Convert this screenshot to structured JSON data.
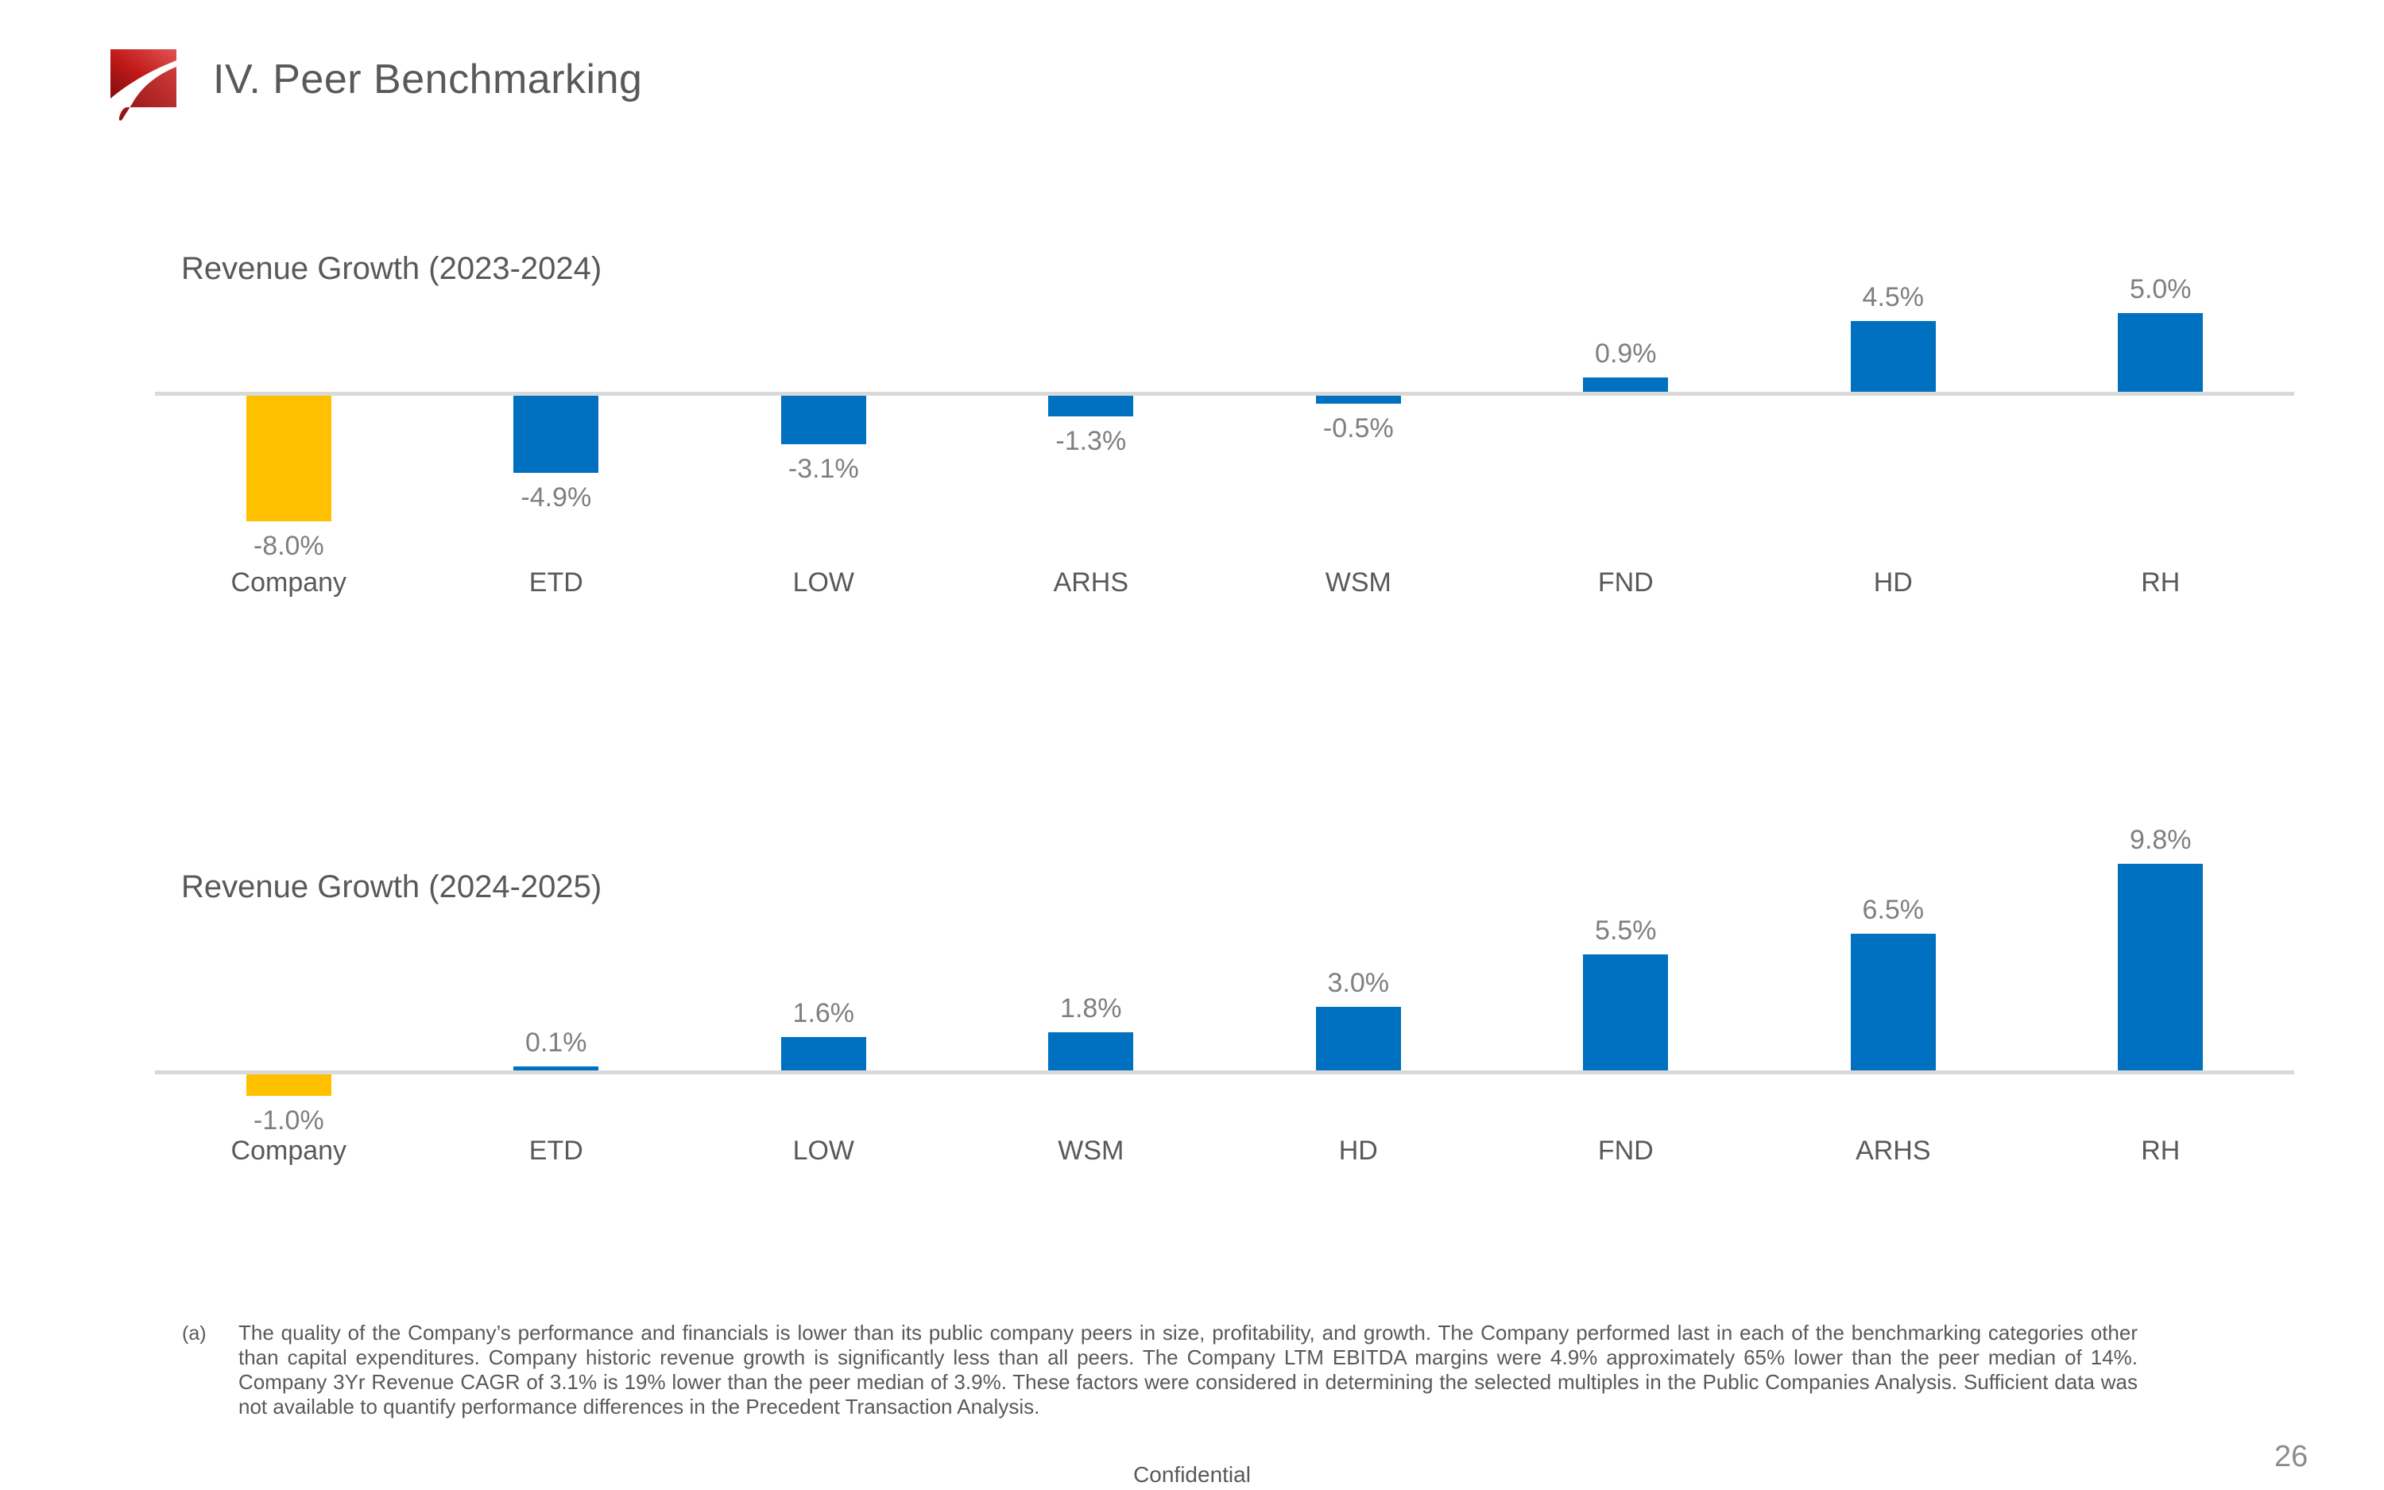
{
  "slide": {
    "title": "IV. Peer Benchmarking",
    "footnote": {
      "marker": "(a)",
      "text": "The quality of the Company’s performance and financials is lower than its public company peers in size, profitability, and growth. The Company performed last in each of the benchmarking categories other than capital expenditures. Company historic revenue growth is significantly less than all peers. The Company LTM EBITDA margins were 4.9% approximately 65% lower than the peer median of 14%. Company 3Yr Revenue CAGR of 3.1% is 19% lower than the peer median of 3.9%. These factors were considered in determining the selected multiples in the Public Companies Analysis. Sufficient data was not available to quantify performance differences in the Precedent Transaction Analysis."
    },
    "footer": {
      "confidential": "Confidential",
      "page_number": "26"
    },
    "colors": {
      "bar_blue": "#0070C0",
      "bar_highlight": "#FFC000",
      "axis_line": "#D9D9D9",
      "title_gray": "#595959",
      "value_label_gray": "#7F7F7F",
      "logo_red": "#C00000"
    }
  },
  "chart_data": [
    {
      "type": "bar",
      "title": "Revenue Growth (2023-2024)",
      "categories": [
        "Company",
        "ETD",
        "LOW",
        "ARHS",
        "WSM",
        "FND",
        "HD",
        "RH"
      ],
      "values": [
        -8.0,
        -4.9,
        -3.1,
        -1.3,
        -0.5,
        0.9,
        4.5,
        5.0
      ],
      "labels": [
        "-8.0%",
        "-4.9%",
        "-3.1%",
        "-1.3%",
        "-0.5%",
        "0.9%",
        "4.5%",
        "5.0%"
      ],
      "highlight_index": 0,
      "series_colors": {
        "default": "#0070C0",
        "highlight": "#FFC000"
      },
      "xlabel": "",
      "ylabel": "",
      "ylim": [
        -8.5,
        5.5
      ],
      "grid": false,
      "legend": false,
      "baseline": 0
    },
    {
      "type": "bar",
      "title": "Revenue Growth (2024-2025)",
      "categories": [
        "Company",
        "ETD",
        "LOW",
        "WSM",
        "HD",
        "FND",
        "ARHS",
        "RH"
      ],
      "values": [
        -1.0,
        0.1,
        1.6,
        1.8,
        3.0,
        5.5,
        6.5,
        9.8
      ],
      "labels": [
        "-1.0%",
        "0.1%",
        "1.6%",
        "1.8%",
        "3.0%",
        "5.5%",
        "6.5%",
        "9.8%"
      ],
      "highlight_index": 0,
      "series_colors": {
        "default": "#0070C0",
        "highlight": "#FFC000"
      },
      "xlabel": "",
      "ylabel": "",
      "ylim": [
        -1.5,
        10.5
      ],
      "grid": false,
      "legend": false,
      "baseline": 0
    }
  ]
}
